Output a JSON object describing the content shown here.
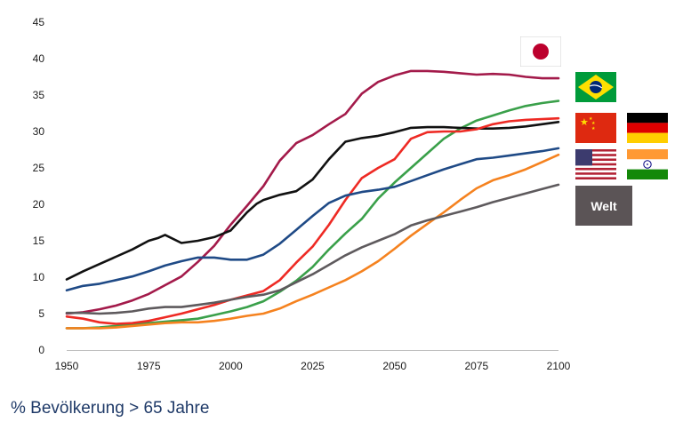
{
  "chart_data": {
    "type": "line",
    "xlabel": "",
    "ylabel": "",
    "xlim": [
      1950,
      2100
    ],
    "ylim": [
      0,
      45
    ],
    "x_ticks": [
      "1950",
      "1975",
      "2000",
      "2025",
      "2050",
      "2075",
      "2100"
    ],
    "y_ticks": [
      "0",
      "5",
      "10",
      "15",
      "20",
      "25",
      "30",
      "35",
      "40",
      "45"
    ],
    "grid": false,
    "legend": "flags at right",
    "series": [
      {
        "color": "#a31a4a",
        "points": [
          [
            1950,
            5.0
          ],
          [
            1955,
            5.2
          ],
          [
            1960,
            5.6
          ],
          [
            1965,
            6.1
          ],
          [
            1970,
            6.8
          ],
          [
            1975,
            7.7
          ],
          [
            1980,
            8.9
          ],
          [
            1985,
            10.1
          ],
          [
            1990,
            12.1
          ],
          [
            1995,
            14.3
          ],
          [
            2000,
            17.2
          ],
          [
            2005,
            19.8
          ],
          [
            2010,
            22.5
          ],
          [
            2015,
            26.0
          ],
          [
            2020,
            28.4
          ],
          [
            2025,
            29.5
          ],
          [
            2030,
            31.0
          ],
          [
            2035,
            32.4
          ],
          [
            2040,
            35.2
          ],
          [
            2045,
            36.8
          ],
          [
            2050,
            37.7
          ],
          [
            2055,
            38.3
          ],
          [
            2060,
            38.3
          ],
          [
            2065,
            38.2
          ],
          [
            2070,
            38.0
          ],
          [
            2075,
            37.8
          ],
          [
            2080,
            37.9
          ],
          [
            2085,
            37.8
          ],
          [
            2090,
            37.5
          ],
          [
            2095,
            37.3
          ],
          [
            2100,
            37.3
          ]
        ]
      },
      {
        "color": "#3aa04a",
        "points": [
          [
            1950,
            3.0
          ],
          [
            1955,
            3.0
          ],
          [
            1960,
            3.1
          ],
          [
            1965,
            3.3
          ],
          [
            1970,
            3.5
          ],
          [
            1975,
            3.7
          ],
          [
            1980,
            3.9
          ],
          [
            1985,
            4.1
          ],
          [
            1990,
            4.3
          ],
          [
            1995,
            4.8
          ],
          [
            2000,
            5.3
          ],
          [
            2005,
            5.9
          ],
          [
            2010,
            6.7
          ],
          [
            2015,
            8.0
          ],
          [
            2020,
            9.5
          ],
          [
            2025,
            11.4
          ],
          [
            2030,
            13.8
          ],
          [
            2035,
            16.0
          ],
          [
            2040,
            18.0
          ],
          [
            2045,
            20.8
          ],
          [
            2050,
            23.0
          ],
          [
            2055,
            25.0
          ],
          [
            2060,
            27.0
          ],
          [
            2065,
            29.0
          ],
          [
            2070,
            30.4
          ],
          [
            2075,
            31.5
          ],
          [
            2080,
            32.2
          ],
          [
            2085,
            32.9
          ],
          [
            2090,
            33.5
          ],
          [
            2095,
            33.9
          ],
          [
            2100,
            34.2
          ]
        ]
      },
      {
        "color": "#111111",
        "points": [
          [
            1950,
            9.7
          ],
          [
            1955,
            10.8
          ],
          [
            1960,
            11.8
          ],
          [
            1965,
            12.8
          ],
          [
            1970,
            13.8
          ],
          [
            1975,
            15.0
          ],
          [
            1978,
            15.4
          ],
          [
            1980,
            15.8
          ],
          [
            1985,
            14.7
          ],
          [
            1990,
            15.0
          ],
          [
            1995,
            15.5
          ],
          [
            2000,
            16.4
          ],
          [
            2005,
            18.9
          ],
          [
            2008,
            20.1
          ],
          [
            2010,
            20.6
          ],
          [
            2015,
            21.3
          ],
          [
            2020,
            21.8
          ],
          [
            2025,
            23.4
          ],
          [
            2030,
            26.2
          ],
          [
            2035,
            28.6
          ],
          [
            2040,
            29.1
          ],
          [
            2045,
            29.4
          ],
          [
            2050,
            29.9
          ],
          [
            2055,
            30.5
          ],
          [
            2060,
            30.6
          ],
          [
            2065,
            30.6
          ],
          [
            2070,
            30.5
          ],
          [
            2075,
            30.4
          ],
          [
            2080,
            30.4
          ],
          [
            2085,
            30.5
          ],
          [
            2090,
            30.7
          ],
          [
            2095,
            31.0
          ],
          [
            2100,
            31.3
          ]
        ]
      },
      {
        "color": "#ee2a24",
        "points": [
          [
            1950,
            4.6
          ],
          [
            1955,
            4.3
          ],
          [
            1960,
            3.8
          ],
          [
            1965,
            3.6
          ],
          [
            1970,
            3.7
          ],
          [
            1975,
            4.0
          ],
          [
            1980,
            4.5
          ],
          [
            1985,
            5.0
          ],
          [
            1990,
            5.6
          ],
          [
            1995,
            6.2
          ],
          [
            2000,
            6.9
          ],
          [
            2005,
            7.5
          ],
          [
            2010,
            8.1
          ],
          [
            2015,
            9.6
          ],
          [
            2020,
            12.0
          ],
          [
            2025,
            14.2
          ],
          [
            2030,
            17.2
          ],
          [
            2035,
            20.6
          ],
          [
            2040,
            23.6
          ],
          [
            2045,
            25.0
          ],
          [
            2050,
            26.2
          ],
          [
            2055,
            29.0
          ],
          [
            2060,
            29.9
          ],
          [
            2065,
            30.0
          ],
          [
            2070,
            30.0
          ],
          [
            2075,
            30.3
          ],
          [
            2080,
            31.0
          ],
          [
            2085,
            31.4
          ],
          [
            2090,
            31.6
          ],
          [
            2095,
            31.7
          ],
          [
            2100,
            31.8
          ]
        ]
      },
      {
        "color": "#1f4a86",
        "points": [
          [
            1950,
            8.2
          ],
          [
            1955,
            8.8
          ],
          [
            1960,
            9.1
          ],
          [
            1965,
            9.6
          ],
          [
            1970,
            10.1
          ],
          [
            1975,
            10.8
          ],
          [
            1980,
            11.6
          ],
          [
            1985,
            12.2
          ],
          [
            1990,
            12.7
          ],
          [
            1995,
            12.7
          ],
          [
            2000,
            12.4
          ],
          [
            2005,
            12.4
          ],
          [
            2010,
            13.1
          ],
          [
            2015,
            14.6
          ],
          [
            2020,
            16.5
          ],
          [
            2025,
            18.4
          ],
          [
            2030,
            20.2
          ],
          [
            2035,
            21.2
          ],
          [
            2040,
            21.7
          ],
          [
            2045,
            22.0
          ],
          [
            2050,
            22.4
          ],
          [
            2055,
            23.2
          ],
          [
            2060,
            24.0
          ],
          [
            2065,
            24.8
          ],
          [
            2070,
            25.5
          ],
          [
            2075,
            26.2
          ],
          [
            2080,
            26.4
          ],
          [
            2085,
            26.7
          ],
          [
            2090,
            27.0
          ],
          [
            2095,
            27.3
          ],
          [
            2100,
            27.7
          ]
        ]
      },
      {
        "color": "#f5821f",
        "points": [
          [
            1950,
            3.0
          ],
          [
            1955,
            3.0
          ],
          [
            1960,
            3.0
          ],
          [
            1965,
            3.1
          ],
          [
            1970,
            3.3
          ],
          [
            1975,
            3.5
          ],
          [
            1980,
            3.7
          ],
          [
            1985,
            3.8
          ],
          [
            1990,
            3.8
          ],
          [
            1995,
            4.0
          ],
          [
            2000,
            4.3
          ],
          [
            2005,
            4.7
          ],
          [
            2010,
            5.0
          ],
          [
            2015,
            5.7
          ],
          [
            2020,
            6.7
          ],
          [
            2025,
            7.6
          ],
          [
            2030,
            8.6
          ],
          [
            2035,
            9.6
          ],
          [
            2040,
            10.8
          ],
          [
            2045,
            12.2
          ],
          [
            2050,
            13.9
          ],
          [
            2055,
            15.7
          ],
          [
            2060,
            17.3
          ],
          [
            2065,
            18.9
          ],
          [
            2070,
            20.6
          ],
          [
            2075,
            22.2
          ],
          [
            2080,
            23.3
          ],
          [
            2085,
            24.0
          ],
          [
            2090,
            24.8
          ],
          [
            2095,
            25.8
          ],
          [
            2100,
            26.8
          ]
        ]
      },
      {
        "color": "#5e5a5d",
        "points": [
          [
            1950,
            5.1
          ],
          [
            1955,
            5.1
          ],
          [
            1960,
            5.0
          ],
          [
            1965,
            5.1
          ],
          [
            1970,
            5.3
          ],
          [
            1975,
            5.7
          ],
          [
            1980,
            5.9
          ],
          [
            1985,
            5.9
          ],
          [
            1990,
            6.2
          ],
          [
            1995,
            6.5
          ],
          [
            2000,
            6.9
          ],
          [
            2005,
            7.3
          ],
          [
            2010,
            7.6
          ],
          [
            2015,
            8.2
          ],
          [
            2020,
            9.3
          ],
          [
            2025,
            10.4
          ],
          [
            2030,
            11.7
          ],
          [
            2035,
            13.0
          ],
          [
            2040,
            14.1
          ],
          [
            2045,
            15.0
          ],
          [
            2050,
            15.9
          ],
          [
            2055,
            17.1
          ],
          [
            2060,
            17.8
          ],
          [
            2065,
            18.4
          ],
          [
            2070,
            19.0
          ],
          [
            2075,
            19.6
          ],
          [
            2080,
            20.3
          ],
          [
            2085,
            20.9
          ],
          [
            2090,
            21.5
          ],
          [
            2095,
            22.1
          ],
          [
            2100,
            22.7
          ]
        ]
      }
    ]
  },
  "caption": "% Bevölkerung > 65 Jahre",
  "legend_flags": [
    {
      "name": "Japan",
      "icon": "japan-flag"
    },
    {
      "name": "Brasilien",
      "icon": "brazil-flag"
    },
    {
      "name": "China",
      "icon": "china-flag"
    },
    {
      "name": "Deutschland",
      "icon": "germany-flag"
    },
    {
      "name": "USA",
      "icon": "usa-flag"
    },
    {
      "name": "Indien",
      "icon": "india-flag"
    }
  ],
  "welt_label": "Welt"
}
